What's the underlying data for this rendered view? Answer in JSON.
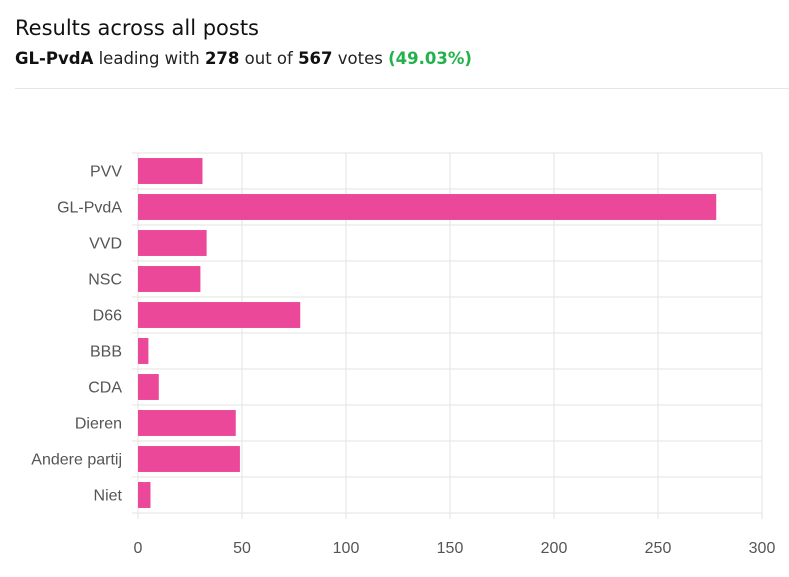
{
  "header": {
    "title": "Results across all posts",
    "leader": "GL-PvdA",
    "leading_with": "leading with",
    "leader_votes": "278",
    "out_of": "out of",
    "total_votes": "567",
    "votes_word": "votes",
    "percentage": "(49.03%)"
  },
  "colors": {
    "bar": "#ec4899",
    "percentage": "#22b24c",
    "grid": "#e3e3e3"
  },
  "chart_data": {
    "type": "bar",
    "orientation": "horizontal",
    "categories": [
      "PVV",
      "GL-PvdA",
      "VVD",
      "NSC",
      "D66",
      "BBB",
      "CDA",
      "Dieren",
      "Andere partij",
      "Niet"
    ],
    "values": [
      31,
      278,
      33,
      30,
      78,
      5,
      10,
      47,
      49,
      6
    ],
    "xlim": [
      0,
      300
    ],
    "xticks": [
      0,
      50,
      100,
      150,
      200,
      250,
      300
    ],
    "grid": true,
    "legend": "none"
  }
}
